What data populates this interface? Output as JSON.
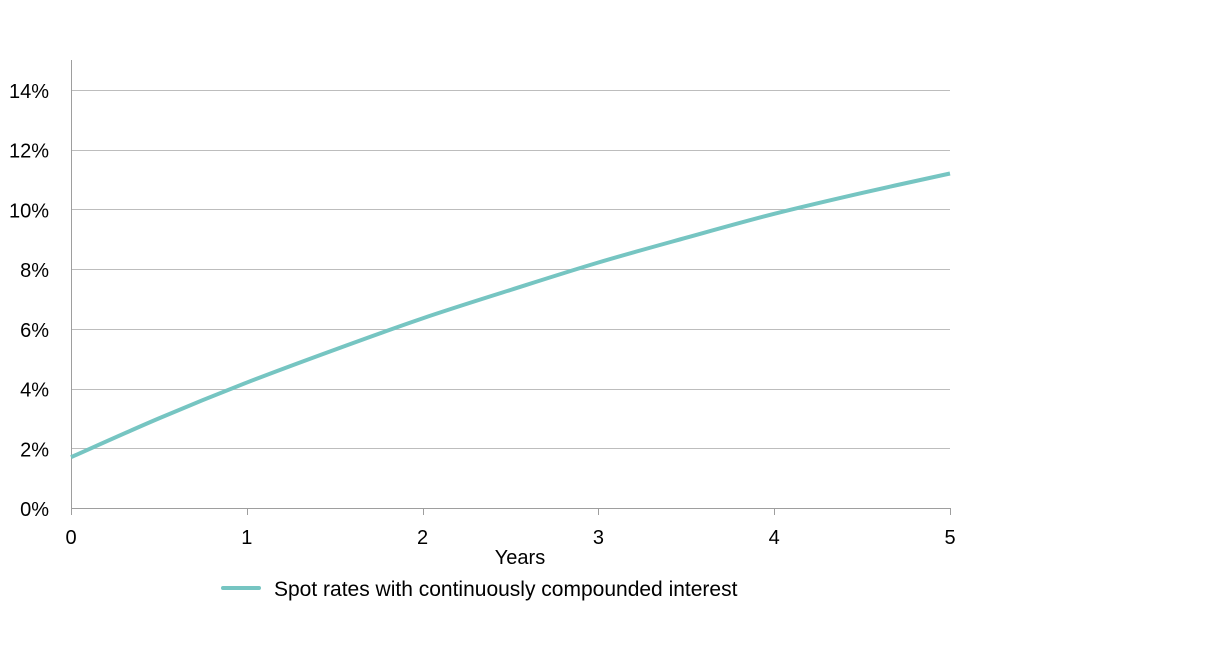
{
  "chart_data": {
    "type": "line",
    "title": "",
    "xlabel": "Years",
    "ylabel": "",
    "xlim": [
      0,
      5
    ],
    "ylim": [
      0,
      0.15
    ],
    "x_ticks": [
      0,
      1,
      2,
      3,
      4,
      5
    ],
    "x_tick_labels": [
      "0",
      "1",
      "2",
      "3",
      "4",
      "5"
    ],
    "y_ticks": [
      0,
      0.02,
      0.04,
      0.06,
      0.08,
      0.1,
      0.12,
      0.14
    ],
    "y_tick_labels": [
      "0%",
      "2%",
      "4%",
      "6%",
      "8%",
      "10%",
      "12%",
      "14%"
    ],
    "grid": "horizontal",
    "legend_position": "bottom",
    "series": [
      {
        "name": "Spot rates with continuously compounded interest",
        "color": "#76c5c2",
        "x": [
          0,
          0.5,
          1,
          1.5,
          2,
          2.5,
          3,
          3.5,
          4,
          4.5,
          5
        ],
        "y": [
          0.017,
          0.03,
          0.042,
          0.053,
          0.0635,
          0.073,
          0.0822,
          0.0905,
          0.0985,
          0.1055,
          0.112
        ]
      }
    ]
  }
}
